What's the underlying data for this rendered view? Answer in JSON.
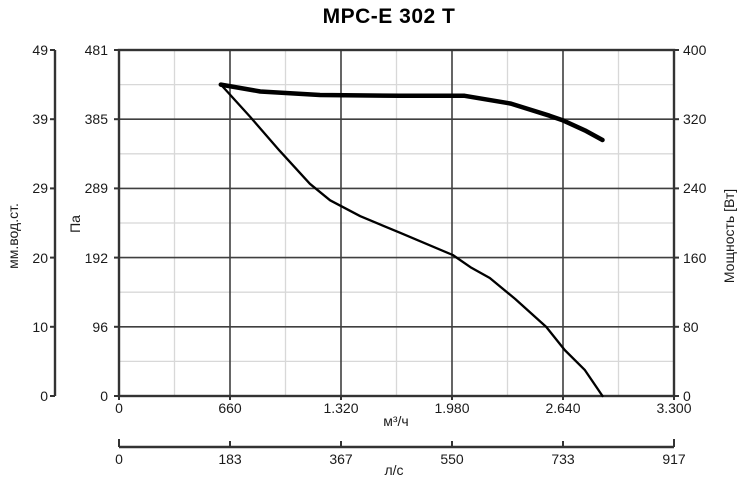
{
  "chart_data": {
    "type": "line",
    "title": "MPC-E 302 T",
    "axes": {
      "y_mm": {
        "label": "мм.вод.ст.",
        "side": "far-left",
        "ticks": [
          0,
          10,
          20,
          29,
          39,
          49
        ],
        "range": [
          0,
          49
        ]
      },
      "y_pa": {
        "label": "Па",
        "side": "left",
        "ticks": [
          0,
          96,
          192,
          289,
          385,
          481
        ],
        "range": [
          0,
          481
        ]
      },
      "y_power": {
        "label": "Мощность [Вт]",
        "side": "right",
        "ticks": [
          0,
          80,
          160,
          240,
          320,
          400
        ],
        "range": [
          0,
          400
        ]
      },
      "x_m3h": {
        "label": "м³/ч",
        "side": "bottom",
        "ticks": [
          "0",
          "660",
          "1.320",
          "1.980",
          "2.640",
          "3.300"
        ],
        "range": [
          0,
          3300
        ]
      },
      "x_ls": {
        "label": "л/с",
        "side": "bottom-secondary",
        "ticks": [
          0,
          183,
          367,
          550,
          733,
          917
        ],
        "range": [
          0,
          917
        ]
      }
    },
    "grid": {
      "major": true,
      "minor": true
    },
    "series": [
      {
        "name": "pressure-curve",
        "y_axis": "y_pa",
        "stroke_width": 2.3,
        "points": [
          [
            605,
            433
          ],
          [
            780,
            388
          ],
          [
            955,
            341
          ],
          [
            1135,
            295
          ],
          [
            1255,
            272
          ],
          [
            1435,
            250
          ],
          [
            1670,
            227
          ],
          [
            1985,
            196
          ],
          [
            2090,
            179
          ],
          [
            2205,
            164
          ],
          [
            2355,
            135
          ],
          [
            2540,
            96
          ],
          [
            2650,
            64
          ],
          [
            2770,
            36
          ],
          [
            2875,
            0
          ]
        ]
      },
      {
        "name": "power-curve",
        "y_axis": "y_power",
        "stroke_width": 4.5,
        "points": [
          [
            605,
            360
          ],
          [
            840,
            352
          ],
          [
            1195,
            348
          ],
          [
            1670,
            347
          ],
          [
            2055,
            347
          ],
          [
            2330,
            338
          ],
          [
            2560,
            324
          ],
          [
            2635,
            319
          ],
          [
            2770,
            307
          ],
          [
            2875,
            296
          ]
        ]
      }
    ],
    "colors": {
      "curve": "#000000",
      "grid_major": "#3f3f3f",
      "grid_minor": "#d8d8d8",
      "frame": "#333333",
      "text": "#1a1a1a",
      "background": "#ffffff"
    }
  }
}
